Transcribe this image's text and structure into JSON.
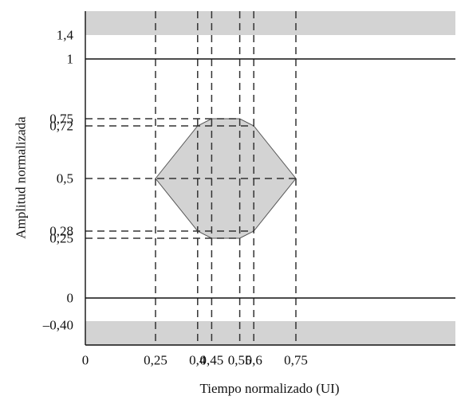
{
  "diagram": {
    "y_axis_label": "Amplitud normalizada",
    "x_axis_label": "Tiempo normalizado (UI)",
    "x_ticks": [
      {
        "value": 0,
        "label": "0"
      },
      {
        "value": 0.25,
        "label": "0,25"
      },
      {
        "value": 0.4,
        "label": "0,4"
      },
      {
        "value": 0.45,
        "label": "0,45"
      },
      {
        "value": 0.55,
        "label": "0,55"
      },
      {
        "value": 0.6,
        "label": "0,6"
      },
      {
        "value": 0.75,
        "label": "0,75"
      }
    ],
    "y_ticks": [
      {
        "value": 1.4,
        "label": "1,4"
      },
      {
        "value": 1,
        "label": "1"
      },
      {
        "value": 0.75,
        "label": "0,75"
      },
      {
        "value": 0.72,
        "label": "0,72"
      },
      {
        "value": 0.5,
        "label": "0,5"
      },
      {
        "value": 0.28,
        "label": "0,28"
      },
      {
        "value": 0.25,
        "label": "0,25"
      },
      {
        "value": 0,
        "label": "0"
      },
      {
        "value": -0.4,
        "label": "–0,40"
      }
    ],
    "eye_mask": [
      [
        0.25,
        0.5
      ],
      [
        0.4,
        0.72
      ],
      [
        0.45,
        0.75
      ],
      [
        0.55,
        0.75
      ],
      [
        0.6,
        0.72
      ],
      [
        0.75,
        0.5
      ],
      [
        0.6,
        0.28
      ],
      [
        0.55,
        0.25
      ],
      [
        0.45,
        0.25
      ],
      [
        0.4,
        0.28
      ]
    ],
    "colors": {
      "mask_fill": "#d3d3d3",
      "mask_stroke": "#555555",
      "line": "#111111",
      "dashed": "#333333"
    }
  }
}
